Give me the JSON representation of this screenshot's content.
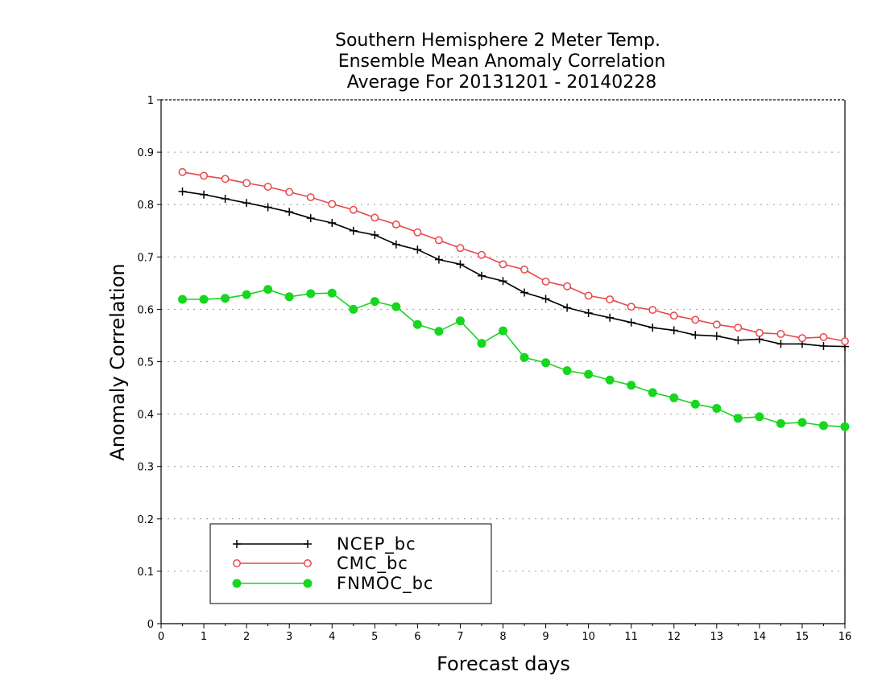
{
  "chart_data": {
    "type": "line",
    "title_lines": [
      "Southern Hemisphere 2 Meter Temp.",
      "Ensemble Mean Anomaly Correlation",
      "Average For 20131201 - 20140228"
    ],
    "xlabel": "Forecast days",
    "ylabel": "Anomaly Correlation",
    "xlim": [
      0,
      16
    ],
    "ylim": [
      0,
      1
    ],
    "x_ticks": [
      0,
      1,
      2,
      3,
      4,
      5,
      6,
      7,
      8,
      9,
      10,
      11,
      12,
      13,
      14,
      15,
      16
    ],
    "y_ticks": [
      0,
      0.1,
      0.2,
      0.3,
      0.4,
      0.5,
      0.6,
      0.7,
      0.8,
      0.9,
      1
    ],
    "y_tick_labels": [
      "0",
      "0.1",
      "0.2",
      "0.3",
      "0.4",
      "0.5",
      "0.6",
      "0.7",
      "0.8",
      "0.9",
      "1"
    ],
    "grid": "horizontal dotted",
    "legend_position": "bottom-left",
    "x": [
      0.5,
      1.0,
      1.5,
      2.0,
      2.5,
      3.0,
      3.5,
      4.0,
      4.5,
      5.0,
      5.5,
      6.0,
      6.5,
      7.0,
      7.5,
      8.0,
      8.5,
      9.0,
      9.5,
      10.0,
      10.5,
      11.0,
      11.5,
      12.0,
      12.5,
      13.0,
      13.5,
      14.0,
      14.5,
      15.0,
      15.5,
      16.0
    ],
    "series": [
      {
        "name": "NCEP_bc",
        "color": "#000000",
        "marker": "plus",
        "values": [
          0.825,
          0.819,
          0.811,
          0.803,
          0.795,
          0.786,
          0.774,
          0.765,
          0.75,
          0.742,
          0.724,
          0.714,
          0.695,
          0.686,
          0.664,
          0.654,
          0.632,
          0.62,
          0.603,
          0.593,
          0.584,
          0.575,
          0.565,
          0.56,
          0.551,
          0.549,
          0.541,
          0.543,
          0.534,
          0.534,
          0.53,
          0.529
        ]
      },
      {
        "name": "CMC_bc",
        "color": "#e8474a",
        "marker": "open-circle",
        "values": [
          0.862,
          0.855,
          0.849,
          0.841,
          0.834,
          0.824,
          0.814,
          0.801,
          0.79,
          0.775,
          0.762,
          0.747,
          0.732,
          0.717,
          0.704,
          0.686,
          0.676,
          0.653,
          0.644,
          0.626,
          0.619,
          0.605,
          0.599,
          0.588,
          0.58,
          0.571,
          0.565,
          0.555,
          0.553,
          0.545,
          0.547,
          0.539
        ]
      },
      {
        "name": "FNMOC_bc",
        "color": "#16d61e",
        "marker": "filled-circle",
        "values": [
          0.619,
          0.619,
          0.621,
          0.628,
          0.638,
          0.624,
          0.63,
          0.631,
          0.6,
          0.615,
          0.605,
          0.571,
          0.558,
          0.578,
          0.535,
          0.559,
          0.508,
          0.498,
          0.483,
          0.476,
          0.465,
          0.455,
          0.441,
          0.431,
          0.419,
          0.411,
          0.392,
          0.395,
          0.382,
          0.384,
          0.378,
          0.376
        ]
      }
    ]
  }
}
